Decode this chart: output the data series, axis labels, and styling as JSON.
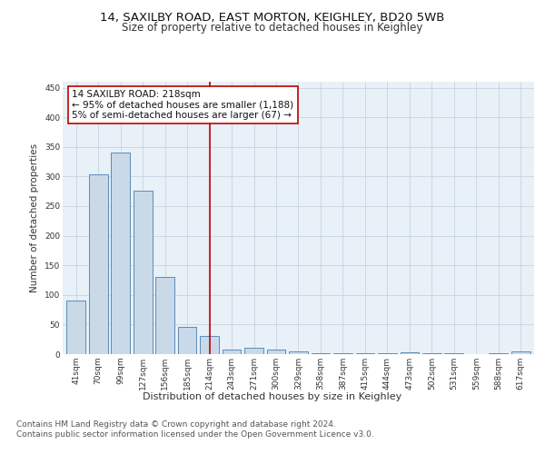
{
  "title_line1": "14, SAXILBY ROAD, EAST MORTON, KEIGHLEY, BD20 5WB",
  "title_line2": "Size of property relative to detached houses in Keighley",
  "xlabel": "Distribution of detached houses by size in Keighley",
  "ylabel": "Number of detached properties",
  "bar_labels": [
    "41sqm",
    "70sqm",
    "99sqm",
    "127sqm",
    "156sqm",
    "185sqm",
    "214sqm",
    "243sqm",
    "271sqm",
    "300sqm",
    "329sqm",
    "358sqm",
    "387sqm",
    "415sqm",
    "444sqm",
    "473sqm",
    "502sqm",
    "531sqm",
    "559sqm",
    "588sqm",
    "617sqm"
  ],
  "bar_values": [
    91,
    303,
    340,
    276,
    131,
    46,
    30,
    8,
    10,
    7,
    5,
    2,
    1,
    1,
    1,
    3,
    1,
    1,
    0,
    1,
    5
  ],
  "bar_color": "#c9d9e8",
  "bar_edge_color": "#5b8db8",
  "highlight_index": 6,
  "highlight_color": "#c00000",
  "annotation_text": "14 SAXILBY ROAD: 218sqm\n← 95% of detached houses are smaller (1,188)\n5% of semi-detached houses are larger (67) →",
  "annotation_box_color": "#ffffff",
  "annotation_box_edge": "#c00000",
  "ylim": [
    0,
    460
  ],
  "yticks": [
    0,
    50,
    100,
    150,
    200,
    250,
    300,
    350,
    400,
    450
  ],
  "footer_line1": "Contains HM Land Registry data © Crown copyright and database right 2024.",
  "footer_line2": "Contains public sector information licensed under the Open Government Licence v3.0.",
  "background_color": "#ffffff",
  "plot_bg_color": "#e8f0f8",
  "grid_color": "#c8d4e0",
  "title1_fontsize": 9.5,
  "title2_fontsize": 8.5,
  "xlabel_fontsize": 8,
  "ylabel_fontsize": 7.5,
  "tick_fontsize": 6.5,
  "annotation_fontsize": 7.5,
  "footer_fontsize": 6.5
}
